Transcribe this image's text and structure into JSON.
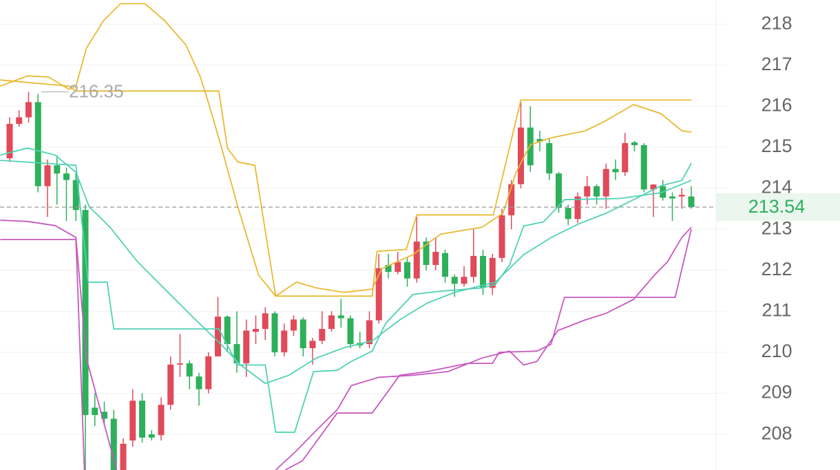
{
  "chart_data": {
    "type": "candlestick",
    "up_color": "#e04a59",
    "down_color": "#2eb05b",
    "ylim": [
      207.13,
      218.59
    ],
    "yticks": [
      208,
      209,
      210,
      211,
      212,
      213,
      214,
      215,
      216,
      217,
      218
    ],
    "grid": true,
    "open": [
      214.73,
      215.57,
      215.73,
      216.1,
      214.05,
      214.56,
      214.36,
      214.2,
      213.47,
      208.65,
      208.55,
      208.38,
      207.1,
      207.85,
      208.82,
      208.0,
      207.98,
      208.72,
      209.7,
      209.73,
      209.41,
      209.1,
      209.9,
      210.87,
      210.2,
      209.73,
      210.5,
      210.57,
      210.95,
      210.0,
      210.53,
      210.8,
      210.1,
      210.28,
      210.57,
      210.9,
      210.83,
      210.23,
      210.2,
      210.78,
      212.13,
      211.96,
      212.2,
      211.8,
      212.7,
      212.13,
      212.42,
      211.84,
      211.67,
      211.84,
      212.35,
      211.57,
      212.3,
      213.34,
      214.1,
      215.48,
      215.2,
      215.1,
      214.36,
      213.52,
      213.25,
      213.8,
      214.05,
      213.8,
      214.47,
      214.39,
      215.12,
      215.05,
      213.97,
      214.05,
      213.8,
      213.8,
      213.8
    ],
    "high": [
      215.73,
      215.9,
      216.35,
      216.3,
      214.7,
      214.8,
      214.5,
      214.4,
      213.6,
      209.0,
      208.8,
      208.6,
      207.9,
      209.1,
      209.0,
      208.1,
      208.9,
      209.9,
      210.45,
      209.8,
      209.5,
      210.0,
      211.35,
      210.9,
      211.0,
      210.8,
      210.9,
      211.1,
      211.0,
      210.7,
      210.9,
      210.85,
      210.35,
      211.0,
      211.0,
      211.3,
      210.9,
      210.5,
      211.0,
      212.4,
      212.4,
      212.45,
      212.3,
      213.3,
      212.8,
      212.8,
      212.5,
      211.9,
      212.1,
      213.0,
      212.5,
      212.4,
      213.5,
      214.2,
      216.1,
      216.0,
      215.4,
      215.2,
      214.4,
      213.6,
      213.9,
      214.3,
      214.1,
      214.6,
      214.7,
      215.35,
      215.15,
      215.1,
      214.1,
      214.2,
      213.9,
      214.0,
      214.05
    ],
    "low": [
      214.64,
      215.5,
      215.6,
      213.9,
      213.3,
      213.6,
      213.2,
      213.2,
      207.0,
      208.2,
      208.2,
      207.0,
      207.0,
      207.7,
      207.8,
      207.85,
      207.85,
      208.6,
      209.4,
      209.1,
      208.7,
      209.0,
      209.9,
      210.0,
      209.5,
      209.4,
      210.2,
      210.3,
      209.9,
      209.9,
      210.4,
      209.9,
      209.7,
      210.2,
      210.5,
      210.6,
      210.1,
      210.1,
      210.1,
      210.7,
      211.8,
      211.9,
      211.6,
      211.7,
      212.0,
      212.0,
      211.7,
      211.35,
      211.6,
      211.7,
      211.4,
      211.4,
      212.2,
      213.0,
      214.0,
      214.4,
      214.9,
      214.2,
      213.4,
      213.1,
      213.15,
      213.6,
      213.6,
      213.5,
      214.2,
      214.3,
      214.9,
      213.9,
      213.3,
      213.7,
      213.2,
      213.5,
      213.5
    ],
    "close": [
      215.57,
      215.73,
      216.1,
      214.05,
      214.56,
      214.36,
      214.2,
      213.47,
      208.47,
      208.47,
      208.38,
      207.1,
      207.77,
      208.82,
      207.92,
      207.92,
      208.72,
      209.7,
      209.73,
      209.41,
      209.1,
      209.9,
      210.87,
      210.2,
      209.73,
      210.53,
      210.57,
      210.95,
      210.0,
      210.53,
      210.8,
      210.1,
      210.28,
      210.57,
      210.9,
      210.83,
      210.2,
      210.17,
      210.78,
      212.05,
      211.96,
      212.2,
      211.8,
      212.7,
      212.13,
      212.45,
      211.84,
      211.67,
      211.84,
      212.35,
      211.57,
      212.3,
      213.34,
      214.1,
      215.48,
      214.56,
      215.14,
      214.36,
      213.52,
      213.25,
      213.8,
      214.05,
      213.8,
      214.47,
      214.39,
      215.1,
      215.05,
      213.97,
      214.09,
      213.77,
      213.75,
      213.84,
      213.54
    ],
    "lines": [
      {
        "color": "#e8b932",
        "x": [
          -1,
          1.9,
          4.1,
          6.3,
          7,
          8.1,
          9.9,
          11.7,
          14.3,
          16.4,
          18.6,
          20.1,
          20.8,
          22.3,
          24.1,
          26.3,
          28.1,
          30.3,
          32.4,
          35.3,
          38.3,
          39.3,
          42.6,
          45.5,
          49.9,
          52.1,
          53.5,
          55,
          57.2,
          60.8,
          63,
          65.9,
          68.8,
          71,
          72
        ],
        "values": [
          216.49,
          216.74,
          216.71,
          216.41,
          216.49,
          217.41,
          218.08,
          218.5,
          218.5,
          218.08,
          217.5,
          216.74,
          216.24,
          215.06,
          213.55,
          211.88,
          211.37,
          211.71,
          211.57,
          211.46,
          211.54,
          212.04,
          212.38,
          212.88,
          213.05,
          213.39,
          214.39,
          215.06,
          215.23,
          215.4,
          215.65,
          216.04,
          215.82,
          215.4,
          215.37
        ]
      },
      {
        "color": "#e8b932",
        "x": [
          -1,
          6.3,
          7,
          22.1,
          23,
          24.1,
          25.9,
          28.1,
          38.3,
          38.8,
          41.9,
          43,
          51.1,
          54,
          72
        ],
        "values": [
          216.64,
          216.49,
          216.37,
          216.37,
          214.98,
          214.64,
          214.56,
          211.37,
          211.37,
          212.46,
          212.51,
          213.35,
          213.35,
          216.15,
          216.15
        ]
      },
      {
        "color": "#4fd1b4",
        "x": [
          -1,
          1.9,
          4.8,
          7,
          8.4,
          10.6,
          13.5,
          16.4,
          19.3,
          22.3,
          24.4,
          27,
          29.5,
          32.4,
          35.3,
          38.3,
          41.2,
          44.1,
          47,
          51.3,
          54.3,
          57.2,
          60.1,
          63,
          65.9,
          68.8,
          71,
          72
        ],
        "values": [
          214.81,
          214.98,
          214.81,
          214.39,
          213.55,
          213.05,
          212.21,
          211.54,
          210.87,
          210.2,
          209.69,
          209.24,
          209.44,
          209.86,
          210.11,
          210.28,
          210.79,
          211.2,
          211.46,
          211.71,
          212.38,
          212.8,
          213.13,
          213.39,
          213.72,
          214.06,
          214.19,
          214.61
        ]
      },
      {
        "color": "#4fd1b4",
        "x": [
          -1,
          7,
          8.3,
          10.3,
          11,
          22.1,
          24.1,
          27,
          28.1,
          30.1,
          32.1,
          34.6,
          36.1,
          38.3,
          39.7,
          42.6,
          45.5,
          49.9,
          51.3,
          52.8,
          54.3,
          56.4,
          58.6,
          64.4,
          68.8,
          72
        ],
        "values": [
          214.68,
          214.56,
          211.71,
          211.71,
          210.57,
          210.57,
          209.69,
          209.69,
          208.05,
          208.05,
          209.53,
          209.56,
          209.78,
          210.03,
          210.7,
          211.41,
          211.49,
          211.57,
          211.65,
          212.13,
          213.08,
          213.18,
          213.72,
          213.75,
          213.89,
          214.19
        ]
      },
      {
        "color": "#c858c0",
        "x": [
          -1,
          1.9,
          4.8,
          7,
          8.1,
          11.3,
          20,
          28.1,
          30.3,
          32.4,
          34.6,
          36.1,
          39,
          42.6,
          46.3,
          49.9,
          52.8,
          54.3,
          55.7,
          57.9,
          60.8,
          63,
          65.9,
          68.1,
          69.5,
          71,
          72
        ],
        "values": [
          213.22,
          213.19,
          213.09,
          212.8,
          209.86,
          207.13,
          null,
          207.13,
          207.6,
          208.1,
          208.6,
          209.19,
          209.39,
          209.44,
          209.53,
          209.86,
          210.03,
          209.69,
          209.78,
          210.53,
          210.79,
          210.95,
          211.29,
          211.88,
          212.21,
          212.8,
          213.05
        ]
      },
      {
        "color": "#c858c0",
        "x": [
          -1,
          7,
          7.9,
          20,
          29.1,
          30.9,
          34.6,
          38.3,
          41.2,
          44.1,
          48.4,
          51,
          51.7,
          55.7,
          57.2,
          58.6,
          70.3,
          72
        ],
        "values": [
          212.75,
          212.75,
          207.13,
          null,
          207.13,
          207.35,
          208.52,
          208.52,
          209.44,
          209.53,
          209.73,
          209.73,
          210.0,
          210.03,
          210.2,
          211.34,
          211.34,
          213.0
        ]
      }
    ],
    "high_marker": 216.35,
    "last_price": 213.54,
    "last_price_color": "#2eb05b"
  }
}
